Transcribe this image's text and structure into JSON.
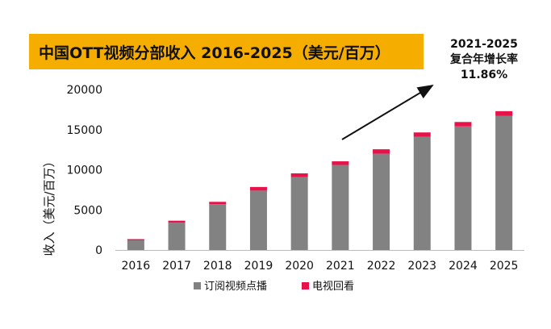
{
  "title": "中国OTT视频分部收入 2016-2025（美元/百万）",
  "annotation": {
    "line1": "2021-2025",
    "line2": "复合年增长率",
    "line3": "11.86%"
  },
  "colors": {
    "banner": "#f5ad00",
    "series_subscription": "#828282",
    "series_catchup": "#e8124a"
  },
  "chart_data": {
    "type": "bar",
    "stacked": true,
    "categories": [
      "2016",
      "2017",
      "2018",
      "2019",
      "2020",
      "2021",
      "2022",
      "2023",
      "2024",
      "2025"
    ],
    "series": [
      {
        "name": "订阅视频点播",
        "values": [
          1200,
          3400,
          5700,
          7400,
          9100,
          10600,
          12000,
          14100,
          15400,
          16700
        ]
      },
      {
        "name": "电视回看",
        "values": [
          150,
          250,
          300,
          450,
          450,
          450,
          550,
          550,
          550,
          600
        ]
      }
    ],
    "ylabel": "收入（美元/百万）",
    "xlabel": "",
    "ylim": [
      0,
      20000
    ],
    "yticks": [
      0,
      5000,
      10000,
      15000,
      20000
    ],
    "ytick_labels": [
      "0",
      "5000",
      "10000",
      "15000",
      "20000"
    ],
    "legend": "bottom",
    "grid": false
  }
}
